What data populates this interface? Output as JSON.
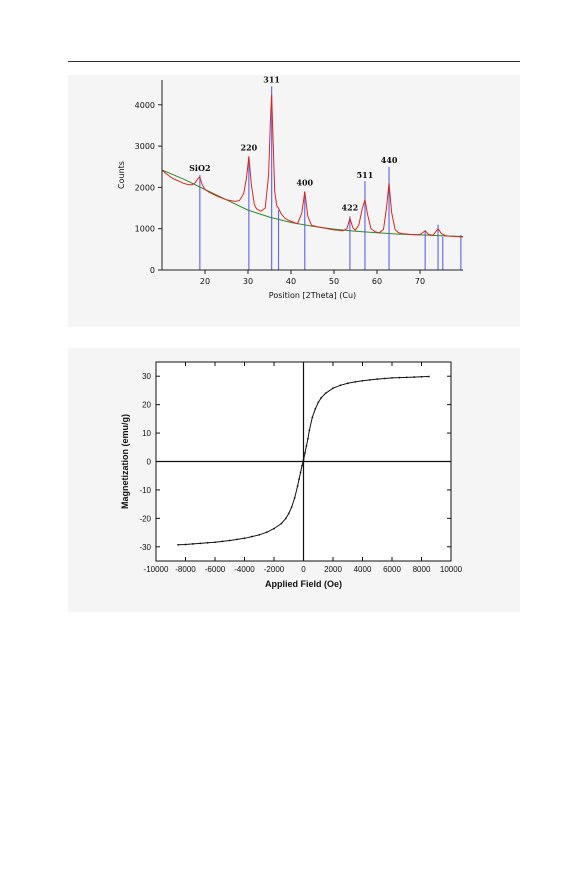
{
  "chart_data": [
    {
      "type": "line",
      "xlabel": "Position [2Theta] (Cu)",
      "ylabel": "Counts",
      "xlim": [
        10,
        80
      ],
      "ylim": [
        0,
        4600
      ],
      "x_ticks": [
        "20",
        "30",
        "40",
        "50",
        "60",
        "70"
      ],
      "y_ticks": [
        "0",
        "1000",
        "2000",
        "3000",
        "4000"
      ],
      "grid": false,
      "colors": {
        "measured": "#d8261f",
        "fit": "#e83a3a",
        "background": "#2e8b2e",
        "reference": "#6a6cf0"
      },
      "peak_labels": [
        {
          "label": "SiO2",
          "x": 18.8,
          "y": 2250
        },
        {
          "label": "220",
          "x": 30.2,
          "y": 2750
        },
        {
          "label": "311",
          "x": 35.5,
          "y": 4400
        },
        {
          "label": "400",
          "x": 43.2,
          "y": 1900
        },
        {
          "label": "422",
          "x": 53.7,
          "y": 1300
        },
        {
          "label": "511",
          "x": 57.2,
          "y": 2080
        },
        {
          "label": "440",
          "x": 62.8,
          "y": 2450
        }
      ],
      "reference_lines": [
        {
          "x": 18.8,
          "y": 2300
        },
        {
          "x": 30.2,
          "y": 2750
        },
        {
          "x": 35.5,
          "y": 4450
        },
        {
          "x": 37.1,
          "y": 1450
        },
        {
          "x": 43.2,
          "y": 1900
        },
        {
          "x": 53.7,
          "y": 1300
        },
        {
          "x": 57.2,
          "y": 2150
        },
        {
          "x": 62.8,
          "y": 2500
        },
        {
          "x": 71.2,
          "y": 950
        },
        {
          "x": 74.2,
          "y": 1100
        },
        {
          "x": 75.3,
          "y": 800
        },
        {
          "x": 79.5,
          "y": 850
        }
      ],
      "background_curve": {
        "x": [
          10,
          15,
          20,
          25,
          30,
          35,
          40,
          45,
          50,
          55,
          60,
          65,
          70,
          75,
          80
        ],
        "y": [
          2420,
          2200,
          1950,
          1700,
          1450,
          1280,
          1150,
          1060,
          990,
          940,
          900,
          870,
          850,
          830,
          810
        ]
      },
      "series": [
        {
          "x": [
            10,
            11,
            12,
            13,
            14,
            15,
            16,
            17,
            17.8,
            18.4,
            18.8,
            19.3,
            20,
            21,
            22,
            23,
            24,
            25,
            26,
            27,
            28,
            29,
            29.6,
            30.2,
            30.8,
            31.5,
            32,
            33,
            34,
            34.8,
            35.2,
            35.5,
            35.8,
            36.2,
            36.7,
            37.1,
            37.6,
            38.5,
            39.5,
            40.5,
            41.5,
            42.5,
            43.2,
            43.9,
            44.8,
            46,
            47,
            48,
            49,
            50,
            51,
            52,
            53,
            53.7,
            54.4,
            55,
            55.8,
            56.6,
            57.2,
            57.8,
            58.6,
            59.5,
            60.5,
            61.5,
            62.2,
            62.8,
            63.4,
            64.2,
            65,
            66,
            67,
            68,
            69,
            70,
            71.2,
            72,
            73,
            74.2,
            75,
            76,
            77,
            78,
            79,
            80
          ],
          "y": [
            2420,
            2330,
            2250,
            2190,
            2150,
            2100,
            2070,
            2060,
            2120,
            2220,
            2250,
            2080,
            1950,
            1880,
            1830,
            1780,
            1740,
            1700,
            1680,
            1660,
            1680,
            1850,
            2200,
            2750,
            2050,
            1580,
            1480,
            1420,
            1500,
            2300,
            3600,
            4250,
            3300,
            1900,
            1550,
            1500,
            1380,
            1260,
            1200,
            1160,
            1120,
            1380,
            1900,
            1300,
            1080,
            1050,
            1030,
            1010,
            990,
            970,
            960,
            950,
            1000,
            1250,
            1020,
            960,
            1100,
            1500,
            1700,
            1350,
            1000,
            930,
            900,
            980,
            1500,
            2100,
            1400,
            980,
            900,
            880,
            870,
            860,
            850,
            860,
            950,
            860,
            840,
            1000,
            880,
            830,
            820,
            810,
            805,
            800
          ]
        }
      ]
    },
    {
      "type": "line",
      "xlabel": "Applied Field (Oe)",
      "ylabel": "Magnetization (emu/g)",
      "xlim": [
        -10000,
        10000
      ],
      "ylim": [
        -35,
        35
      ],
      "x_ticks": [
        "-10000",
        "-8000",
        "-6000",
        "-4000",
        "-2000",
        "0",
        "2000",
        "4000",
        "6000",
        "8000",
        "10000"
      ],
      "y_ticks": [
        "-30",
        "-20",
        "-10",
        "0",
        "10",
        "20",
        "30"
      ],
      "grid": false,
      "colors": {
        "curve": "#111111"
      },
      "series": [
        {
          "x": [
            -8500,
            -8000,
            -7500,
            -7000,
            -6500,
            -6000,
            -5500,
            -5000,
            -4500,
            -4000,
            -3500,
            -3000,
            -2500,
            -2000,
            -1500,
            -1200,
            -1000,
            -800,
            -600,
            -400,
            -300,
            -200,
            -100,
            0,
            100,
            200,
            300,
            400,
            600,
            800,
            1000,
            1200,
            1500,
            2000,
            2500,
            3000,
            3500,
            4000,
            4500,
            5000,
            5500,
            6000,
            6500,
            7000,
            7500,
            8000,
            8500
          ],
          "y": [
            -29.3,
            -29.2,
            -29.0,
            -28.8,
            -28.6,
            -28.4,
            -28.1,
            -27.8,
            -27.4,
            -27.0,
            -26.4,
            -25.8,
            -24.9,
            -23.6,
            -21.8,
            -20.0,
            -18.3,
            -16.0,
            -12.8,
            -8.6,
            -6.2,
            -3.8,
            -1.5,
            0.5,
            3.0,
            5.5,
            8.0,
            11.0,
            15.5,
            18.5,
            20.8,
            22.4,
            24.0,
            25.8,
            26.8,
            27.5,
            28.0,
            28.4,
            28.7,
            29.0,
            29.2,
            29.4,
            29.5,
            29.6,
            29.7,
            29.8,
            29.9
          ]
        }
      ]
    }
  ]
}
